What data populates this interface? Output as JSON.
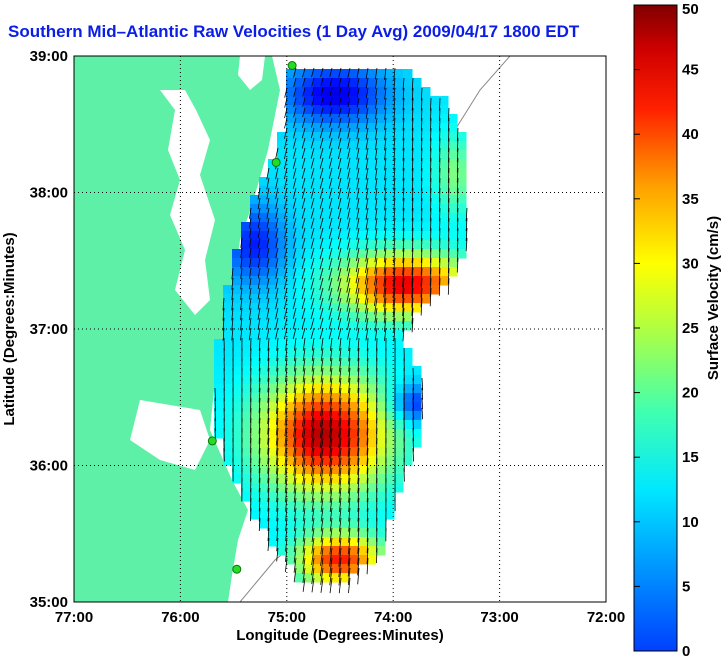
{
  "title": "Southern Mid–Atlantic Raw Velocities (1 Day Avg) 2009/04/17 1800 EDT",
  "colors": {
    "title": "#0a1ee6",
    "land": "#5ff0a8",
    "water": "#ffffff",
    "grid": "#000000",
    "arrow": "#000000",
    "station": "#22dd22"
  },
  "chart_data": {
    "type": "heatmap",
    "xlabel": "Longitude (Degrees:Minutes)",
    "ylabel": "Latitude (Degrees:Minutes)",
    "x_ticks": [
      "77:00",
      "76:00",
      "75:00",
      "74:00",
      "73:00",
      "72:00"
    ],
    "y_ticks": [
      "39:00",
      "38:00",
      "37:00",
      "36:00",
      "35:00"
    ],
    "xlim": [
      -77,
      -72
    ],
    "ylim": [
      35,
      39
    ],
    "grid": true,
    "colorbar": {
      "label": "Surface Velocity (cm/s)",
      "min": 0,
      "max": 50,
      "ticks": [
        "0",
        "5",
        "10",
        "15",
        "20",
        "25",
        "30",
        "35",
        "40",
        "45",
        "50"
      ],
      "colormap": "jet"
    },
    "stations": [
      {
        "lon": -74.95,
        "lat": 38.93
      },
      {
        "lon": -75.1,
        "lat": 38.22
      },
      {
        "lon": -75.7,
        "lat": 36.18
      },
      {
        "lon": -75.47,
        "lat": 35.24
      }
    ]
  }
}
